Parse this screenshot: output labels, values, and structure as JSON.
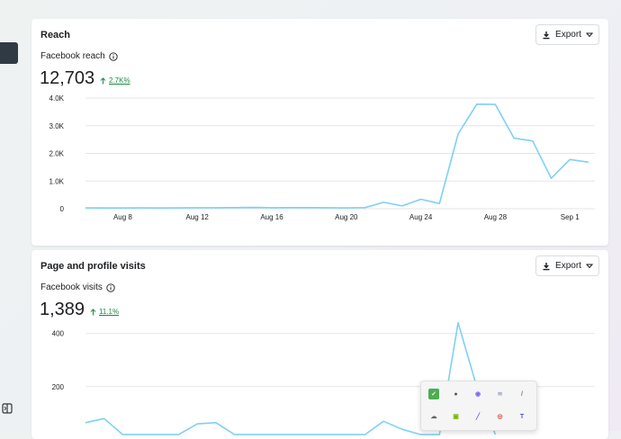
{
  "reach": {
    "title": "Reach",
    "export_label": "Export",
    "metric_label": "Facebook reach",
    "value": "12,703",
    "change": "2.7K%",
    "chart_data": {
      "type": "line",
      "x_ticks": [
        "Aug 8",
        "Aug 12",
        "Aug 16",
        "Aug 20",
        "Aug 24",
        "Aug 28",
        "Sep 1"
      ],
      "y_ticks": [
        "4.0K",
        "3.0K",
        "2.0K",
        "1.0K",
        "0"
      ],
      "ylim": [
        0,
        4000
      ],
      "x": [
        "Aug 6",
        "Aug 7",
        "Aug 8",
        "Aug 9",
        "Aug 10",
        "Aug 11",
        "Aug 12",
        "Aug 13",
        "Aug 14",
        "Aug 15",
        "Aug 16",
        "Aug 17",
        "Aug 18",
        "Aug 19",
        "Aug 20",
        "Aug 21",
        "Aug 22",
        "Aug 23",
        "Aug 24",
        "Aug 25",
        "Aug 26",
        "Aug 27",
        "Aug 28",
        "Aug 29",
        "Aug 30",
        "Aug 31",
        "Sep 1",
        "Sep 2"
      ],
      "values": [
        30,
        25,
        25,
        30,
        25,
        30,
        35,
        35,
        40,
        45,
        35,
        40,
        40,
        35,
        30,
        40,
        230,
        100,
        340,
        190,
        2700,
        3780,
        3770,
        2550,
        2450,
        1100,
        1780,
        1680
      ],
      "color": "#7ed0f5"
    }
  },
  "visits": {
    "title": "Page and profile visits",
    "export_label": "Export",
    "metric_label": "Facebook visits",
    "value": "1,389",
    "change": "11.1%",
    "chart_data": {
      "type": "line",
      "y_ticks": [
        "400",
        "200"
      ],
      "ylim": [
        0,
        500
      ],
      "x": [
        "Aug 6",
        "Aug 7",
        "Aug 8",
        "Aug 9",
        "Aug 10",
        "Aug 11",
        "Aug 12",
        "Aug 13",
        "Aug 14",
        "Aug 15",
        "Aug 16",
        "Aug 17",
        "Aug 18",
        "Aug 19",
        "Aug 20",
        "Aug 21",
        "Aug 22",
        "Aug 23",
        "Aug 24",
        "Aug 25",
        "Aug 26",
        "Aug 27",
        "Aug 28"
      ],
      "values": [
        65,
        80,
        20,
        20,
        20,
        20,
        60,
        65,
        20,
        20,
        20,
        20,
        20,
        20,
        20,
        20,
        70,
        40,
        20,
        20,
        440,
        200,
        20
      ],
      "color": "#7ed0f5"
    }
  },
  "tray_icons": [
    {
      "name": "shield-check-icon",
      "color": "#4caf50",
      "glyph": "✓"
    },
    {
      "name": "cloud-app-icon",
      "color": "#555555",
      "glyph": "●"
    },
    {
      "name": "messenger-icon",
      "color": "#7b61ff",
      "glyph": "◉"
    },
    {
      "name": "app-icon",
      "color": "#9aa7c7",
      "glyph": "≋"
    },
    {
      "name": "pen-tool-icon",
      "color": "#777777",
      "glyph": "/"
    },
    {
      "name": "onedrive-icon",
      "color": "#5c6670",
      "glyph": "☁"
    },
    {
      "name": "nvidia-icon",
      "color": "#76b900",
      "glyph": "▣"
    },
    {
      "name": "stylus-icon",
      "color": "#8e5cd9",
      "glyph": "╱"
    },
    {
      "name": "chrome-icon",
      "color": "#db4437",
      "glyph": "◎"
    },
    {
      "name": "teams-icon",
      "color": "#5059c9",
      "glyph": "T"
    }
  ]
}
